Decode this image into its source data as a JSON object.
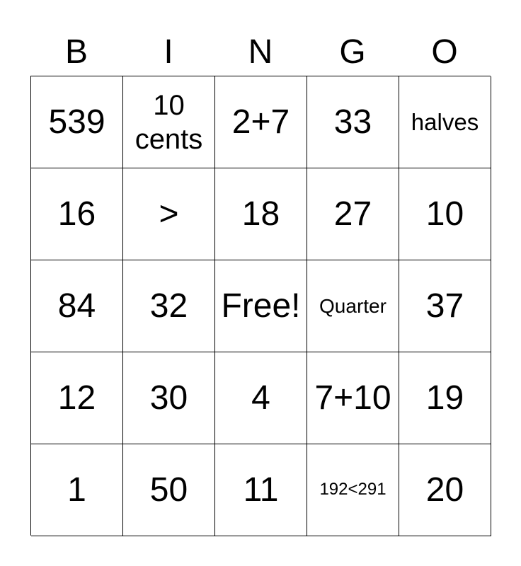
{
  "header": [
    "B",
    "I",
    "N",
    "G",
    "O"
  ],
  "cells": [
    "539",
    "10\ncents",
    "2+7",
    "33",
    "halves",
    "16",
    ">",
    "18",
    "27",
    "10",
    "84",
    "32",
    "Free!",
    "Quarter",
    "37",
    "12",
    "30",
    "4",
    "7+10",
    "19",
    "1",
    "50",
    "11",
    "192<291",
    "20"
  ]
}
